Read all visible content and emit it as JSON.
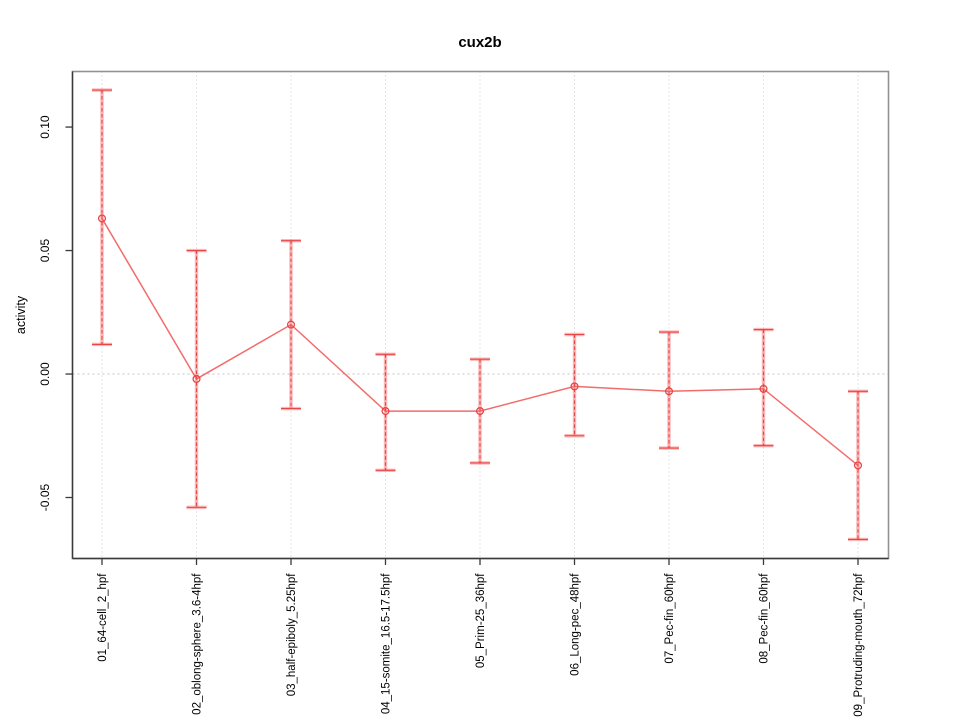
{
  "title": "cux2b",
  "colors": {
    "series_red": "#e84545",
    "series_red_light": "#fa7d7d",
    "series_line": "#f25c5c",
    "grid_gray": "#c9c9c9",
    "zero_line_gray": "#c4c4c4",
    "box_gray": "#919191",
    "axis_dark": "#3a3a3a",
    "text_black": "#000000",
    "background": "#ffffff"
  },
  "chart_data": {
    "type": "line",
    "title": "cux2b",
    "xlabel": "",
    "ylabel": "activity",
    "legend": "none",
    "categories": [
      "01_64-cell_2_hpf",
      "02_oblong-sphere_3.6-4hpf",
      "03_half-epiboly_5.25hpf",
      "04_15-somite_16.5-17.5hpf",
      "05_Prim-25_36hpf",
      "06_Long-pec_48hpf",
      "07_Pec-fin_60hpf",
      "08_Pec-fin_60hpf",
      "09_Protruding-mouth_72hpf"
    ],
    "series": [
      {
        "name": "activity",
        "marker": "open-circle",
        "values": [
          0.063,
          -0.002,
          0.02,
          -0.015,
          -0.015,
          -0.005,
          -0.007,
          -0.006,
          -0.037
        ],
        "error_upper": [
          0.115,
          0.05,
          0.054,
          0.008,
          0.006,
          0.016,
          0.017,
          0.018,
          -0.007
        ],
        "error_lower": [
          0.012,
          -0.054,
          -0.014,
          -0.039,
          -0.036,
          -0.025,
          -0.03,
          -0.029,
          -0.067
        ]
      }
    ],
    "y_ticks": [
      -0.05,
      0.0,
      0.05,
      0.1
    ],
    "y_tick_labels": [
      "-0.05",
      "0.00",
      "0.05",
      "0.10"
    ],
    "ylim": [
      -0.0747,
      0.1225
    ],
    "grid": {
      "vertical_at_categories": true,
      "horizontal_at_zero": true,
      "style": "dotted"
    }
  }
}
